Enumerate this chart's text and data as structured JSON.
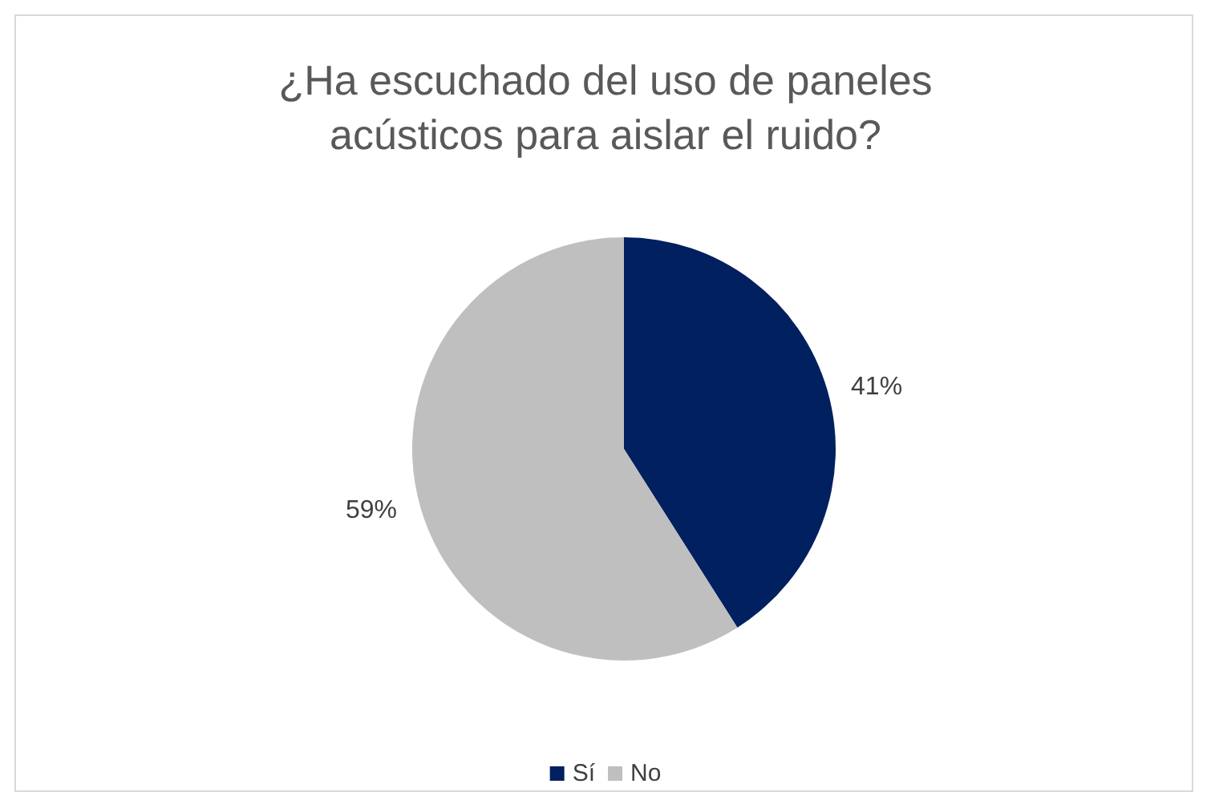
{
  "chart_data": {
    "type": "pie",
    "title": "¿Ha escuchado del uso de paneles\nacústicos para aislar el ruido?",
    "categories": [
      "Sí",
      "No"
    ],
    "values": [
      41,
      59
    ],
    "colors": [
      "#002060",
      "#bfbfbf"
    ],
    "value_labels": [
      "41%",
      "59%"
    ],
    "legend": "bottom"
  }
}
